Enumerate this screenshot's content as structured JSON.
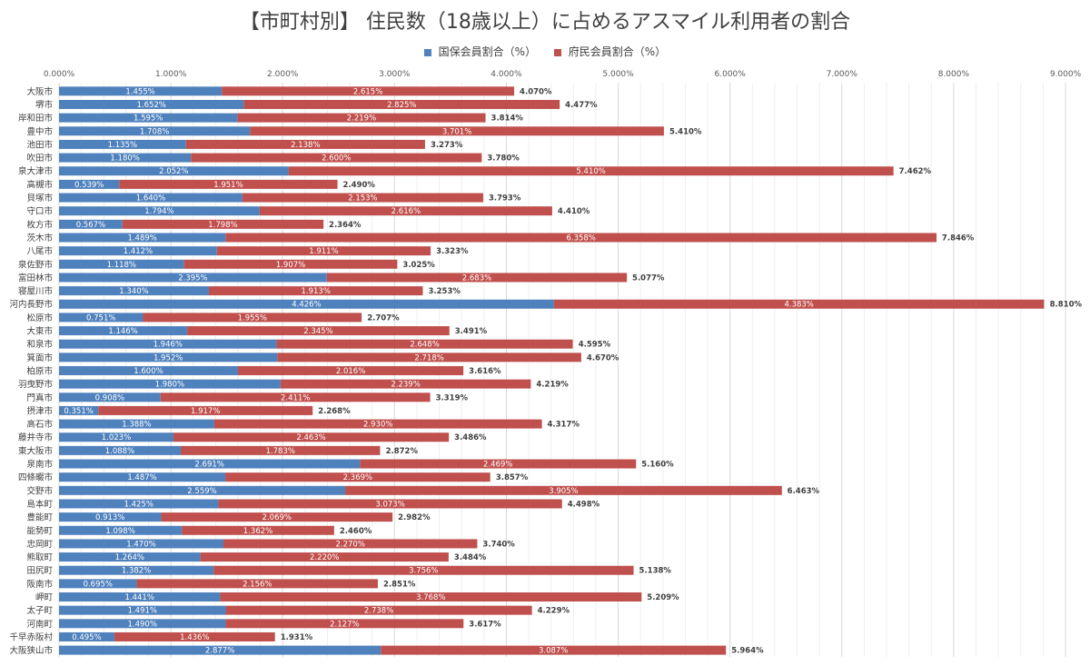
{
  "chart_data": {
    "type": "bar",
    "orientation": "horizontal",
    "stacked": true,
    "title": "【市町村別】 住民数（18歳以上）に占めるアスマイル利用者の割合",
    "xlim": [
      0,
      9
    ],
    "x_ticks": [
      "0.000%",
      "1.000%",
      "2.000%",
      "3.000%",
      "4.000%",
      "5.000%",
      "6.000%",
      "7.000%",
      "8.000%",
      "9.000%"
    ],
    "grid": true,
    "legend_position": "top",
    "categories": [
      "大阪市",
      "堺市",
      "岸和田市",
      "豊中市",
      "池田市",
      "吹田市",
      "泉大津市",
      "高槻市",
      "貝塚市",
      "守口市",
      "枚方市",
      "茨木市",
      "八尾市",
      "泉佐野市",
      "富田林市",
      "寝屋川市",
      "河内長野市",
      "松原市",
      "大東市",
      "和泉市",
      "箕面市",
      "柏原市",
      "羽曳野市",
      "門真市",
      "摂津市",
      "高石市",
      "藤井寺市",
      "東大阪市",
      "泉南市",
      "四條畷市",
      "交野市",
      "島本町",
      "豊能町",
      "能勢町",
      "忠岡町",
      "熊取町",
      "田尻町",
      "阪南市",
      "岬町",
      "太子町",
      "河南町",
      "千早赤阪村",
      "大阪狭山市"
    ],
    "series": [
      {
        "name": "国保会員割合（%）",
        "color": "#4f81bd",
        "values": [
          1.455,
          1.652,
          1.595,
          1.708,
          1.135,
          1.18,
          2.052,
          0.539,
          1.64,
          1.794,
          0.567,
          1.489,
          1.412,
          1.118,
          2.395,
          1.34,
          4.426,
          0.751,
          1.146,
          1.946,
          1.952,
          1.6,
          1.98,
          0.908,
          0.351,
          1.388,
          1.023,
          1.088,
          2.691,
          1.487,
          2.559,
          1.425,
          0.913,
          1.098,
          1.47,
          1.264,
          1.382,
          0.695,
          1.441,
          1.491,
          1.49,
          0.495,
          2.877
        ],
        "labels": [
          "1.455%",
          "1.652%",
          "1.595%",
          "1.708%",
          "1.135%",
          "1.180%",
          "2.052%",
          "0.539%",
          "1.640%",
          "1.794%",
          "0.567%",
          "1.489%",
          "1.412%",
          "1.118%",
          "2.395%",
          "1.340%",
          "4.426%",
          "0.751%",
          "1.146%",
          "1.946%",
          "1.952%",
          "1.600%",
          "1.980%",
          "0.908%",
          "0.351%",
          "1.388%",
          "1.023%",
          "1.088%",
          "2.691%",
          "1.487%",
          "2.559%",
          "1.425%",
          "0.913%",
          "1.098%",
          "1.470%",
          "1.264%",
          "1.382%",
          "0.695%",
          "1.441%",
          "1.491%",
          "1.490%",
          "0.495%",
          "2.877%"
        ]
      },
      {
        "name": "府民会員割合（%）",
        "color": "#c0504d",
        "values": [
          2.615,
          2.825,
          2.219,
          3.701,
          2.138,
          2.6,
          5.41,
          1.951,
          2.153,
          2.616,
          1.798,
          6.358,
          1.911,
          1.907,
          2.683,
          1.913,
          4.383,
          1.955,
          2.345,
          2.648,
          2.718,
          2.016,
          2.239,
          2.411,
          1.917,
          2.93,
          2.463,
          1.783,
          2.469,
          2.369,
          3.905,
          3.073,
          2.069,
          1.362,
          2.27,
          2.22,
          3.756,
          2.156,
          3.768,
          2.738,
          2.127,
          1.436,
          3.087
        ],
        "labels": [
          "2.615%",
          "2.825%",
          "2.219%",
          "3.701%",
          "2.138%",
          "2.600%",
          "5.410%",
          "1.951%",
          "2.153%",
          "2.616%",
          "1.798%",
          "6.358%",
          "1.911%",
          "1.907%",
          "2.683%",
          "1.913%",
          "4.383%",
          "1.955%",
          "2.345%",
          "2.648%",
          "2.718%",
          "2.016%",
          "2.239%",
          "2.411%",
          "1.917%",
          "2.930%",
          "2.463%",
          "1.783%",
          "2.469%",
          "2.369%",
          "3.905%",
          "3.073%",
          "2.069%",
          "1.362%",
          "2.270%",
          "2.220%",
          "3.756%",
          "2.156%",
          "3.768%",
          "2.738%",
          "2.127%",
          "1.436%",
          "3.087%"
        ]
      }
    ],
    "totals": [
      4.07,
      4.477,
      3.814,
      5.41,
      3.273,
      3.78,
      7.462,
      2.49,
      3.793,
      4.41,
      2.364,
      7.846,
      3.323,
      3.025,
      5.077,
      3.253,
      8.81,
      2.707,
      3.491,
      4.595,
      4.67,
      3.616,
      4.219,
      3.319,
      2.268,
      4.317,
      3.486,
      2.872,
      5.16,
      3.857,
      6.463,
      4.498,
      2.982,
      2.46,
      3.74,
      3.484,
      5.138,
      2.851,
      5.209,
      4.229,
      3.617,
      1.931,
      5.964
    ],
    "total_labels": [
      "4.070%",
      "4.477%",
      "3.814%",
      "5.410%",
      "3.273%",
      "3.780%",
      "7.462%",
      "2.490%",
      "3.793%",
      "4.410%",
      "2.364%",
      "7.846%",
      "3.323%",
      "3.025%",
      "5.077%",
      "3.253%",
      "8.810%",
      "2.707%",
      "3.491%",
      "4.595%",
      "4.670%",
      "3.616%",
      "4.219%",
      "3.319%",
      "2.268%",
      "4.317%",
      "3.486%",
      "2.872%",
      "5.160%",
      "3.857%",
      "6.463%",
      "4.498%",
      "2.982%",
      "2.460%",
      "3.740%",
      "3.484%",
      "5.138%",
      "2.851%",
      "5.209%",
      "4.229%",
      "3.617%",
      "1.931%",
      "5.964%"
    ]
  }
}
